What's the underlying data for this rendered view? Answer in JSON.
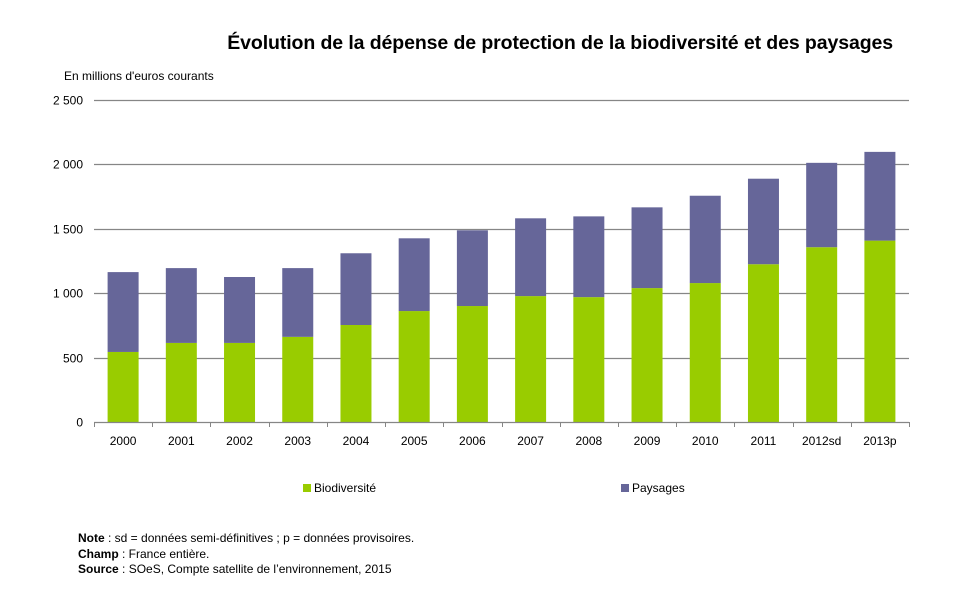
{
  "chart_data": {
    "type": "bar",
    "stacked": true,
    "title": "Évolution de la dépense de protection de la biodiversité et des paysages",
    "ylabel": "En millions d'euros courants",
    "xlabel": "",
    "ylim": [
      0,
      2500
    ],
    "yticks": [
      0,
      500,
      1000,
      1500,
      2000,
      2500
    ],
    "ytick_labels": [
      "0",
      "500",
      "1 000",
      "1 500",
      "2 000",
      "2 500"
    ],
    "grid": true,
    "legend_position": "bottom",
    "categories": [
      "2000",
      "2001",
      "2002",
      "2003",
      "2004",
      "2005",
      "2006",
      "2007",
      "2008",
      "2009",
      "2010",
      "2011",
      "2012sd",
      "2013p"
    ],
    "series": [
      {
        "name": "Biodiversité",
        "color": "#99CC00",
        "values": [
          543,
          613,
          613,
          660,
          752,
          860,
          899,
          976,
          968,
          1038,
          1077,
          1223,
          1355,
          1406
        ]
      },
      {
        "name": "Paysages",
        "color": "#666699",
        "values": [
          619,
          580,
          511,
          533,
          556,
          564,
          587,
          603,
          626,
          626,
          677,
          663,
          654,
          688
        ]
      }
    ]
  },
  "notes": [
    {
      "label": "Note",
      "text": " : sd = données semi-définitives ; p = données provisoires."
    },
    {
      "label": "Champ",
      "text": " : France entière."
    },
    {
      "label": "Source",
      "text": " : SOeS, Compte satellite de l’environnement, 2015"
    }
  ]
}
